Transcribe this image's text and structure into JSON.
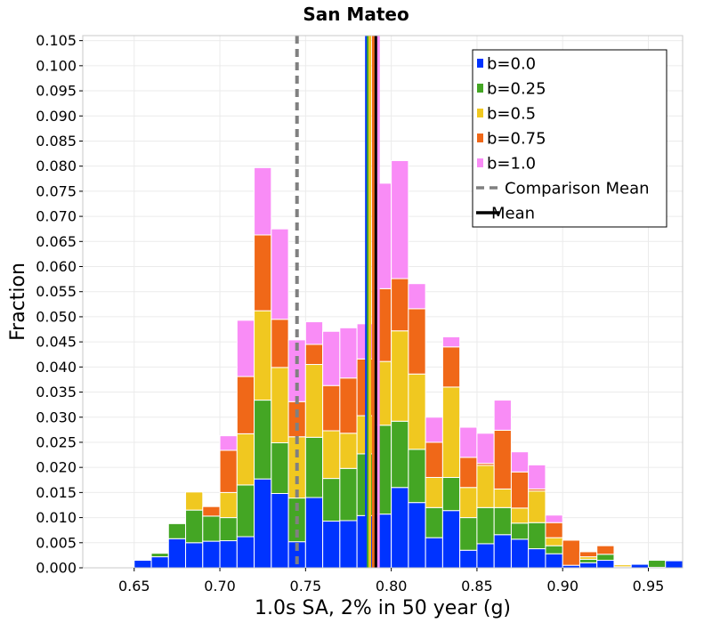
{
  "chart_data": {
    "type": "bar",
    "stacked": true,
    "title": "San Mateo",
    "xlabel": "1.0s SA, 2% in 50 year (g)",
    "ylabel": "Fraction",
    "xlim": [
      0.62,
      0.97
    ],
    "ylim": [
      0.0,
      0.106
    ],
    "grid": true,
    "legend_position": "top-right",
    "x_ticks": [
      "0.65",
      "0.70",
      "0.75",
      "0.80",
      "0.85",
      "0.90",
      "0.95"
    ],
    "y_ticks": [
      "0.000",
      "0.005",
      "0.010",
      "0.015",
      "0.020",
      "0.025",
      "0.030",
      "0.035",
      "0.040",
      "0.045",
      "0.050",
      "0.055",
      "0.060",
      "0.065",
      "0.070",
      "0.075",
      "0.080",
      "0.085",
      "0.090",
      "0.095",
      "0.100",
      "0.105"
    ],
    "bin_width": 0.01,
    "bin_centers": [
      0.655,
      0.665,
      0.675,
      0.685,
      0.695,
      0.705,
      0.715,
      0.725,
      0.735,
      0.745,
      0.755,
      0.765,
      0.775,
      0.785,
      0.795,
      0.805,
      0.815,
      0.825,
      0.835,
      0.845,
      0.855,
      0.865,
      0.875,
      0.885,
      0.895,
      0.905,
      0.915,
      0.925,
      0.935,
      0.945,
      0.955,
      0.965
    ],
    "series": [
      {
        "name": "b=0.0",
        "color": "#0033ff",
        "values": [
          0.0015,
          0.0022,
          0.0058,
          0.005,
          0.0053,
          0.0054,
          0.0062,
          0.0177,
          0.0148,
          0.0052,
          0.014,
          0.0093,
          0.0094,
          0.0104,
          0.0107,
          0.016,
          0.013,
          0.006,
          0.0114,
          0.0035,
          0.0048,
          0.0066,
          0.0057,
          0.0038,
          0.0028,
          0.0005,
          0.001,
          0.0015,
          0.0002,
          0.0007,
          0.0001,
          0.0014
        ]
      },
      {
        "name": "b=0.25",
        "color": "#44a624",
        "values": [
          0.0,
          0.0007,
          0.003,
          0.0065,
          0.005,
          0.0046,
          0.0103,
          0.0157,
          0.0101,
          0.0087,
          0.012,
          0.0085,
          0.0104,
          0.0123,
          0.0177,
          0.0132,
          0.0106,
          0.006,
          0.0066,
          0.0065,
          0.0072,
          0.0054,
          0.0032,
          0.0052,
          0.0016,
          0.0,
          0.0007,
          0.0012,
          0.0,
          0.0,
          0.0014,
          0.0
        ]
      },
      {
        "name": "b=0.5",
        "color": "#f0c820",
        "values": [
          0.0,
          0.0,
          0.0,
          0.0036,
          0.0,
          0.005,
          0.0102,
          0.0178,
          0.015,
          0.0122,
          0.0145,
          0.0095,
          0.007,
          0.0076,
          0.0127,
          0.018,
          0.015,
          0.006,
          0.018,
          0.006,
          0.0084,
          0.0037,
          0.003,
          0.0063,
          0.0016,
          0.0,
          0.0005,
          0.0,
          0.0004,
          0.0,
          0.0,
          0.0
        ]
      },
      {
        "name": "b=0.75",
        "color": "#f06818",
        "values": [
          0.0,
          0.0,
          0.0,
          0.0,
          0.0019,
          0.0084,
          0.0114,
          0.0151,
          0.0096,
          0.007,
          0.004,
          0.009,
          0.011,
          0.0113,
          0.0145,
          0.0104,
          0.013,
          0.007,
          0.008,
          0.006,
          0.0004,
          0.0117,
          0.0072,
          0.0004,
          0.003,
          0.005,
          0.001,
          0.0017,
          0.0,
          0.0,
          0.0,
          0.0
        ]
      },
      {
        "name": "b=1.0",
        "color": "#f98cf6",
        "values": [
          0.0,
          0.0,
          0.0,
          0.0,
          0.0,
          0.0029,
          0.0112,
          0.0134,
          0.018,
          0.0123,
          0.0045,
          0.0108,
          0.01,
          0.007,
          0.021,
          0.0235,
          0.005,
          0.005,
          0.002,
          0.006,
          0.006,
          0.006,
          0.004,
          0.0048,
          0.0015,
          0.0,
          0.0,
          0.0,
          0.0,
          0.0,
          0.0,
          0.0
        ]
      }
    ],
    "vertical_lines": [
      {
        "name": "Comparison Mean",
        "x": 0.745,
        "color": "#808080",
        "style": "dashed"
      },
      {
        "name": "b=0.0 mean",
        "x": 0.7855,
        "color": "#0033ff",
        "style": "solid",
        "legend": false
      },
      {
        "name": "b=0.25 mean",
        "x": 0.7865,
        "color": "#44a624",
        "style": "solid",
        "legend": false
      },
      {
        "name": "b=0.5 mean",
        "x": 0.7875,
        "color": "#f0c820",
        "style": "solid",
        "legend": false
      },
      {
        "name": "b=0.75 mean",
        "x": 0.7895,
        "color": "#f06818",
        "style": "solid",
        "legend": false
      },
      {
        "name": "b=1.0 mean",
        "x": 0.7925,
        "color": "#f98cf6",
        "style": "solid",
        "legend": false
      },
      {
        "name": "Mean",
        "x": 0.791,
        "color": "#000000",
        "style": "solid"
      }
    ],
    "legend": [
      {
        "label": "b=0.0",
        "color": "#0033ff",
        "kind": "patch"
      },
      {
        "label": "b=0.25",
        "color": "#44a624",
        "kind": "patch"
      },
      {
        "label": "b=0.5",
        "color": "#f0c820",
        "kind": "patch"
      },
      {
        "label": "b=0.75",
        "color": "#f06818",
        "kind": "patch"
      },
      {
        "label": "b=1.0",
        "color": "#f98cf6",
        "kind": "patch"
      },
      {
        "label": "Comparison Mean",
        "color": "#808080",
        "kind": "dashed-line"
      },
      {
        "label": "Mean",
        "color": "#000000",
        "kind": "line"
      }
    ]
  }
}
